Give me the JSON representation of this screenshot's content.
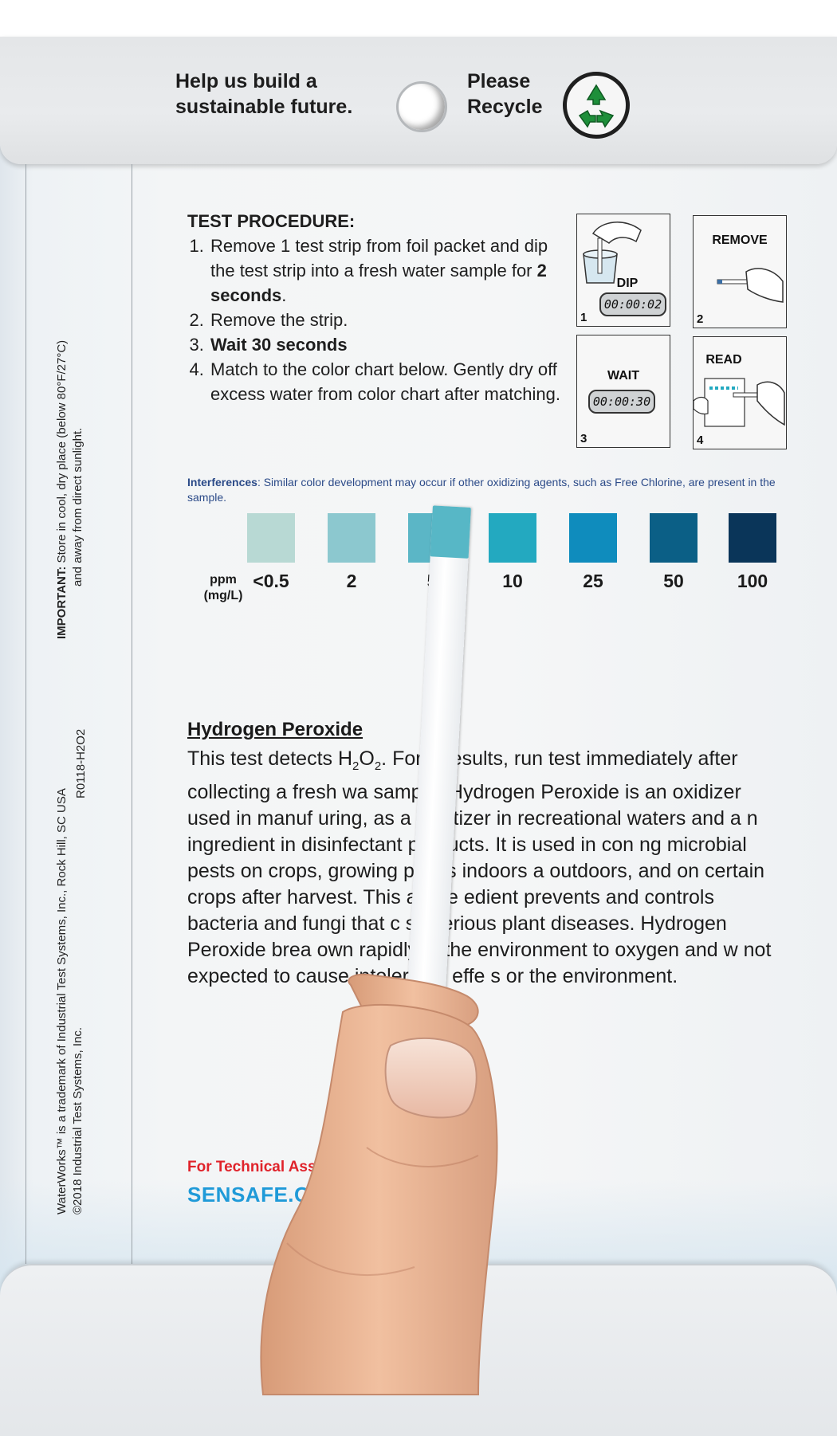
{
  "flap": {
    "left_line1": "Help us build a",
    "left_line2": "sustainable future.",
    "right_line1": "Please",
    "right_line2": "Recycle"
  },
  "side": {
    "important_label": "IMPORTANT:",
    "important_line1": " Store in cool, dry place (below 80°F/27°C)",
    "important_line2": "and away from direct sunlight.",
    "trademark_line1": "WaterWorks™ is a trademark of Industrial Test Systems, Inc., Rock Hill, SC USA",
    "trademark_line2": "©2018 Industrial Test Systems, Inc.",
    "code": "R0118-H2O2"
  },
  "procedure": {
    "heading": "TEST PROCEDURE:",
    "step1_text": "Remove 1 test strip from foil packet and dip the test strip into a fresh water sample for ",
    "step1_bold": "2 seconds",
    "step1_end": ".",
    "step2": "Remove the strip.",
    "step3": "Wait 30 seconds",
    "step4": "Match to the color chart below. Gently dry off excess water from color chart after matching."
  },
  "panels": [
    {
      "num": "1",
      "label": "DIP",
      "timer": "00:00:02"
    },
    {
      "num": "2",
      "label": "REMOVE"
    },
    {
      "num": "3",
      "label": "WAIT",
      "timer": "00:00:30"
    },
    {
      "num": "4",
      "label": "READ"
    }
  ],
  "interferences": {
    "label": "Interferences",
    "text": ": Similar color development may occur if other oxidizing agents, such as Free Chlorine, are present in the sample."
  },
  "color_chart": {
    "unit_line1": "ppm",
    "unit_line2": "(mg/L)",
    "values": [
      "<0.5",
      "2",
      "5",
      "10",
      "25",
      "50",
      "100"
    ],
    "colors": [
      "#b8d9d4",
      "#8cc8cf",
      "#5bb6c6",
      "#23a9c0",
      "#0f8cbd",
      "#0b5f86",
      "#0a3559"
    ]
  },
  "hydrogen_peroxide": {
    "heading": "Hydrogen Peroxide",
    "body_1": "This test detects H",
    "sub_2a": "2",
    "body_2": "O",
    "sub_2b": "2",
    "body_3": ". For b  results, run test immediately after collecting a fresh wa  sample. Hydrogen Peroxide is an oxidizer used in manuf  uring, as a sanitizer in recreational waters and a  n ingredient in disinfectant products. It is used in con  ng microbial pests on crops, growing plants indoors a  outdoors, and on certain crops after harvest. This active  edient prevents and controls bacteria and fungi that c  se serious plant diseases. Hydrogen Peroxide brea  own rapidly in the environment to oxygen and w  not expected to cause intolerable effe  s or the environment."
  },
  "footer": {
    "tech_support": "For Technical Assis",
    "website": "SENSAFE.COM"
  },
  "icons": {
    "recycle": "recycle-icon",
    "accent": "#1e8f3a"
  }
}
